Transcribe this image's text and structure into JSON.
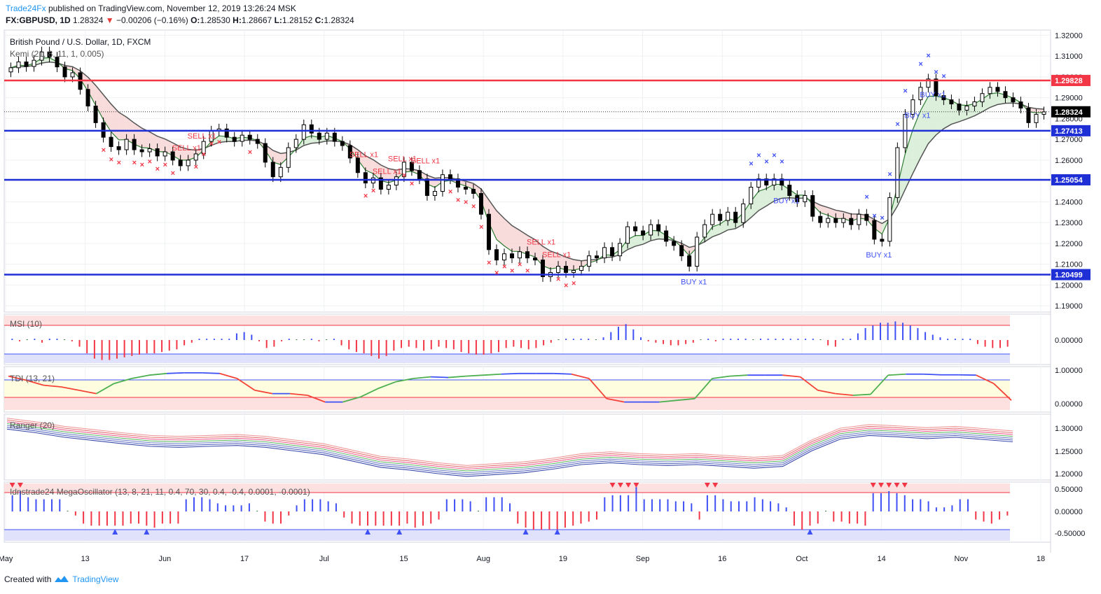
{
  "header": {
    "publisher": "Trade24Fx",
    "published_text": "published on TradingView.com, November 12, 2019 13:26:24 MSK",
    "symbol": "FX:GBPUSD, 1D",
    "last": "1.28324",
    "change": "−0.00206 (−0.16%)",
    "open_label": "O:",
    "open": "1.28530",
    "high_label": "H:",
    "high": "1.28667",
    "low_label": "L:",
    "low": "1.28152",
    "close_label": "C:",
    "close": "1.28324"
  },
  "footer": {
    "created_with": "Created with",
    "brand": "TradingView"
  },
  "colors": {
    "red_line": "#f23645",
    "blue_line": "#1f2fd6",
    "up_candle": "#ffffff",
    "down_candle": "#000000",
    "sell_marker": "#f23645",
    "buy_marker": "#3f51f5",
    "grid": "#eef0f3"
  },
  "chart_data": [
    {
      "type": "line",
      "title": "British Pound / U.S. Dollar, 1D, FXCM",
      "subtitle": "Kemi (21, 8, 11, 1, 0.005)",
      "y_axis": {
        "ticks": [
          "1.32000",
          "1.31000",
          "1.30000",
          "1.29000",
          "1.28000",
          "1.27000",
          "1.26000",
          "1.25000",
          "1.24000",
          "1.23000",
          "1.22000",
          "1.21000",
          "1.20000",
          "1.19000"
        ],
        "range": [
          1.187,
          1.3225
        ]
      },
      "x_axis": {
        "ticks": [
          "May",
          "13",
          "Jun",
          "17",
          "Jul",
          "15",
          "Aug",
          "19",
          "Sep",
          "16",
          "Oct",
          "14",
          "Nov",
          "18"
        ]
      },
      "horizontal_lines": [
        {
          "value": 1.29828,
          "label": "1.29828",
          "color": "#f23645"
        },
        {
          "value": 1.27413,
          "label": "1.27413",
          "color": "#1f2fd6"
        },
        {
          "value": 1.25054,
          "label": "1.25054",
          "color": "#1f2fd6"
        },
        {
          "value": 1.20499,
          "label": "1.20499",
          "color": "#1f2fd6"
        }
      ],
      "last_price": {
        "value": 1.28324,
        "label": "1.28324"
      },
      "series": [
        {
          "values": [
            1.3044,
            1.3072,
            1.305,
            1.308,
            1.312,
            1.3095,
            1.3048,
            1.3,
            1.302,
            1.294,
            1.286,
            1.278,
            1.271,
            1.2665,
            1.265,
            1.27,
            1.265,
            1.264,
            1.2655,
            1.262,
            1.264,
            1.26,
            1.2573,
            1.26,
            1.263,
            1.269,
            1.274,
            1.275,
            1.271,
            1.269,
            1.272,
            1.27,
            1.268,
            1.259,
            1.252,
            1.2565,
            1.266,
            1.27,
            1.277,
            1.273,
            1.27,
            1.273,
            1.269,
            1.267,
            1.261,
            1.254,
            1.249,
            1.2515,
            1.246,
            1.248,
            1.252,
            1.259,
            1.255,
            1.251,
            1.243,
            1.245,
            1.253,
            1.251,
            1.247,
            1.246,
            1.244,
            1.234,
            1.217,
            1.212,
            1.215,
            1.213,
            1.216,
            1.213,
            1.212,
            1.204,
            1.206,
            1.209,
            1.206,
            1.207,
            1.209,
            1.214,
            1.213,
            1.218,
            1.214,
            1.22,
            1.228,
            1.226,
            1.224,
            1.229,
            1.226,
            1.221,
            1.219,
            1.214,
            1.209,
            1.223,
            1.229,
            1.234,
            1.231,
            1.235,
            1.23,
            1.239,
            1.247,
            1.251,
            1.248,
            1.251,
            1.248,
            1.243,
            1.24,
            1.243,
            1.233,
            1.23,
            1.232,
            1.23,
            1.232,
            1.229,
            1.234,
            1.231,
            1.222,
            1.221,
            1.242,
            1.266,
            1.282,
            1.289,
            1.295,
            1.299,
            1.291,
            1.289,
            1.287,
            1.284,
            1.286,
            1.288,
            1.292,
            1.295,
            1.293,
            1.29,
            1.288,
            1.285,
            1.278,
            1.282,
            1.2832
          ]
        }
      ],
      "annotations": [
        "SELL x1",
        "SELL x1",
        "SELL x1",
        "SELL x1",
        "SELL x1",
        "SELL x1",
        "SELL x1",
        "SELL x1",
        "BUY x1",
        "BUY x1",
        "BUY x1",
        "BUY x1",
        "BUY x1"
      ]
    },
    {
      "type": "bar",
      "title": "MSI (10)",
      "y_axis": {
        "ticks": [
          "0.00000"
        ]
      },
      "series": [
        {
          "name": "",
          "values": [
            0.05,
            -0.05,
            0,
            0.05,
            -0.1,
            0.05,
            0.05,
            0,
            -0.05,
            -0.25,
            -0.5,
            -0.7,
            -0.75,
            -0.75,
            -0.7,
            -0.65,
            -0.6,
            -0.55,
            -0.5,
            -0.5,
            -0.45,
            -0.4,
            -0.35,
            -0.2,
            -0.1,
            0.05,
            0.05,
            0.05,
            0.05,
            0.05,
            0.25,
            0.3,
            0.2,
            -0.05,
            -0.3,
            -0.25,
            -0.05,
            0.05,
            0,
            0,
            0.05,
            -0.05,
            0,
            0.05,
            -0.2,
            -0.35,
            -0.45,
            -0.5,
            -0.6,
            -0.7,
            -0.6,
            -0.4,
            -0.3,
            -0.25,
            -0.3,
            -0.4,
            -0.35,
            -0.25,
            -0.3,
            -0.35,
            -0.45,
            -0.5,
            -0.55,
            -0.55,
            -0.5,
            -0.45,
            -0.3,
            -0.25,
            -0.3,
            -0.35,
            -0.3,
            -0.2,
            -0.1,
            0,
            0.05,
            0.05,
            0.05,
            0.05,
            0,
            0.1,
            0.3,
            0.5,
            0.6,
            0.4,
            0.1,
            -0.05,
            -0.1,
            -0.15,
            -0.2,
            -0.2,
            -0.15,
            -0.1,
            0,
            0.05,
            -0.05,
            0.05,
            0.05,
            0.05,
            0.05,
            0,
            0.05,
            0.05,
            0.05,
            0.05,
            0.05,
            0.05,
            0.05,
            0.05,
            0,
            -0.2,
            -0.25,
            0.05,
            0.05,
            0.25,
            0.45,
            0.55,
            0.65,
            0.65,
            0.7,
            0.65,
            0.55,
            0.45,
            0.3,
            0.2,
            0.1,
            0.05,
            0.05,
            0.05,
            0.05,
            -0.15,
            -0.25,
            -0.3,
            -0.3,
            -0.25
          ]
        }
      ]
    },
    {
      "type": "line",
      "title": "TDI (13, 21)",
      "y_axis": {
        "ticks": [
          "1.00000",
          "0.00000"
        ]
      },
      "series": [
        {
          "name": "",
          "values": [
            0.82,
            0.7,
            0.55,
            0.5,
            0.4,
            0.3,
            0.6,
            0.75,
            0.85,
            0.9,
            0.92,
            0.92,
            0.9,
            0.75,
            0.4,
            0.3,
            0.3,
            0.25,
            0.05,
            0.05,
            0.2,
            0.45,
            0.65,
            0.75,
            0.8,
            0.78,
            0.82,
            0.85,
            0.88,
            0.9,
            0.9,
            0.9,
            0.88,
            0.75,
            0.15,
            0.05,
            0.05,
            0.05,
            0.1,
            0.15,
            0.75,
            0.82,
            0.85,
            0.85,
            0.85,
            0.8,
            0.4,
            0.3,
            0.25,
            0.28,
            0.85,
            0.88,
            0.88,
            0.86,
            0.86,
            0.85,
            0.6,
            0.1
          ]
        }
      ]
    },
    {
      "type": "line",
      "title": "Ranger (20)",
      "y_axis": {
        "ticks": [
          "1.30000",
          "1.25000",
          "1.20000"
        ]
      },
      "series": [
        {
          "name": "",
          "values": [
            1.31,
            1.302,
            1.292,
            1.285,
            1.278,
            1.272,
            1.27,
            1.272,
            1.274,
            1.27,
            1.262,
            1.254,
            1.24,
            1.226,
            1.22,
            1.212,
            1.206,
            1.21,
            1.214,
            1.222,
            1.232,
            1.236,
            1.232,
            1.23,
            1.232,
            1.228,
            1.224,
            1.228,
            1.262,
            1.288,
            1.296,
            1.293,
            1.289,
            1.292,
            1.287,
            1.282
          ]
        }
      ]
    },
    {
      "type": "bar",
      "title": "Idnstrade24 MegaOscillator (13, 8, 21, 11, 0.4, 70, 30, 0.4, -0.4, 0.0001, -0.0001)",
      "y_axis": {
        "ticks": [
          "0.50000",
          "0.00000",
          "-0.50000"
        ]
      },
      "series": [
        {
          "name": "",
          "values": [
            0.4,
            0.5,
            0.35,
            0.3,
            0.3,
            0.3,
            0.3,
            0,
            -0.1,
            -0.3,
            -0.35,
            -0.35,
            -0.35,
            -0.35,
            -0.35,
            -0.3,
            -0.3,
            -0.35,
            -0.4,
            -0.3,
            -0.3,
            -0.3,
            0.3,
            0.35,
            0.35,
            0.3,
            0.2,
            0.15,
            0.15,
            0.15,
            0.2,
            0,
            -0.25,
            -0.3,
            -0.3,
            -0.1,
            0.15,
            0.3,
            0.3,
            0.3,
            0.25,
            0.2,
            -0.15,
            -0.3,
            -0.35,
            -0.35,
            -0.35,
            -0.35,
            -0.35,
            -0.35,
            -0.3,
            -0.4,
            -0.35,
            -0.3,
            -0.2,
            0.3,
            0.3,
            0.3,
            0.25,
            0,
            0.35,
            0.35,
            0.35,
            0.2,
            -0.3,
            -0.4,
            -0.45,
            -0.45,
            -0.45,
            -0.45,
            -0.4,
            -0.35,
            -0.3,
            -0.25,
            -0.2,
            0.35,
            0.4,
            0.4,
            0.4,
            0.6,
            0.3,
            0.3,
            0.3,
            0.3,
            0.25,
            0.25,
            0.2,
            -0.2,
            0.4,
            0.4,
            0.3,
            0.25,
            0.25,
            0.25,
            0.35,
            0.3,
            0.25,
            0.2,
            0.1,
            -0.35,
            -0.45,
            -0.35,
            -0.3,
            0,
            -0.25,
            -0.25,
            -0.3,
            -0.3,
            -0.35,
            0.45,
            0.45,
            0.5,
            0.45,
            0.4,
            0.3,
            0.3,
            0.25,
            0.1,
            0.1,
            0.15,
            0.3,
            0.3,
            -0.2,
            -0.25,
            -0.3,
            -0.2,
            -0.1
          ]
        }
      ]
    }
  ]
}
